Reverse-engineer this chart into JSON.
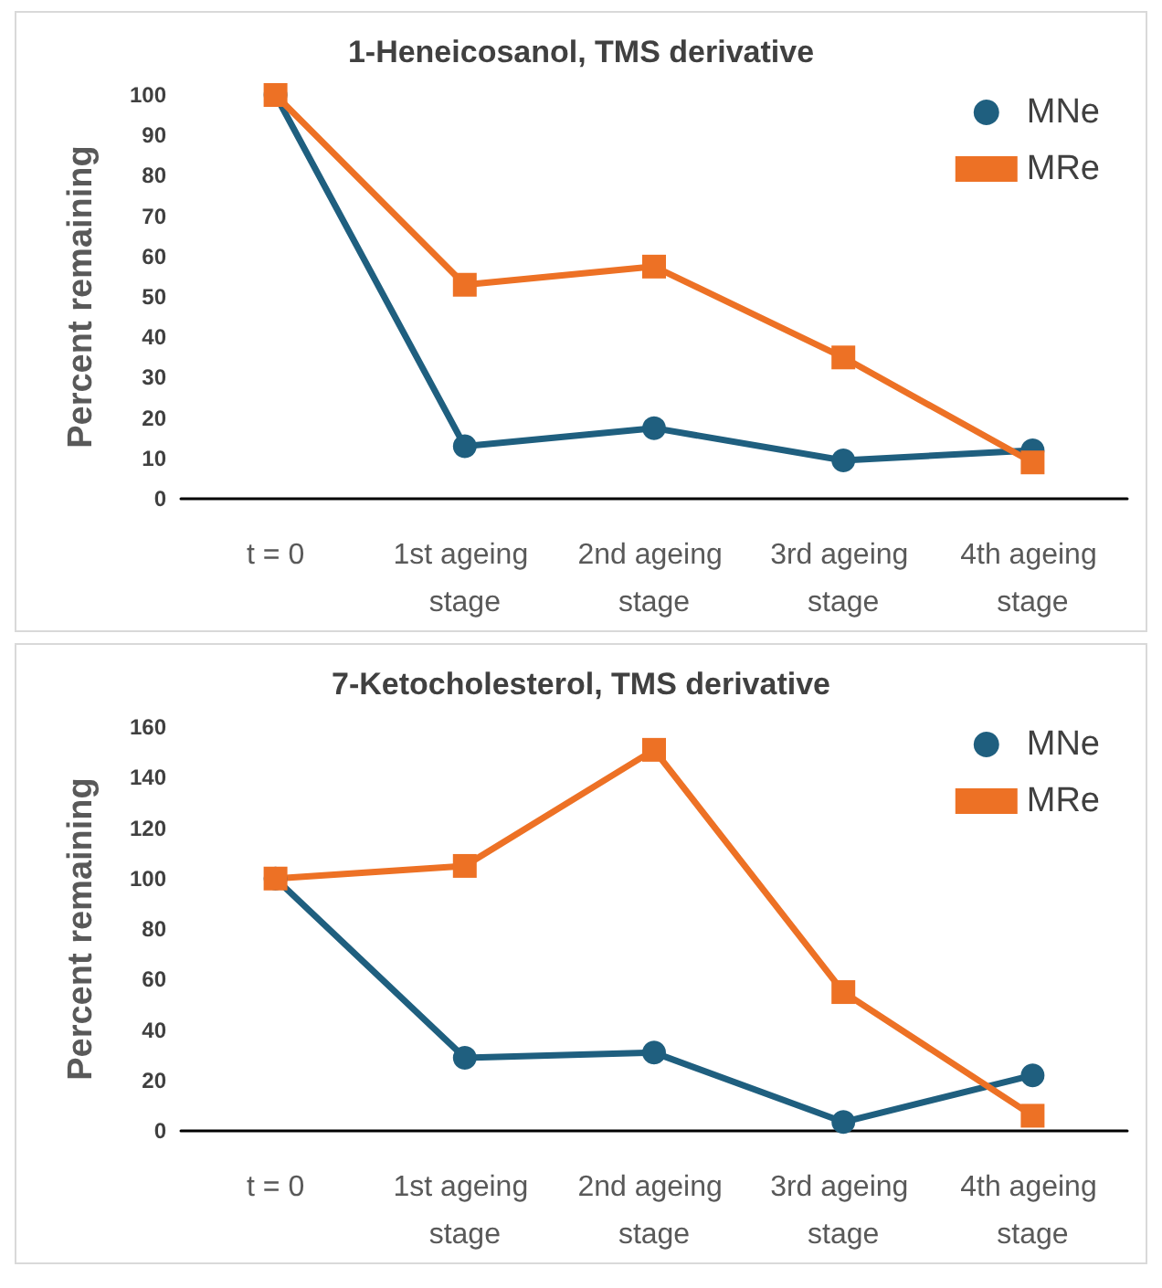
{
  "chart_data": [
    {
      "type": "line",
      "title": "1-Heneicosanol, TMS derivative",
      "ylabel": "Percent remaining",
      "categories": [
        "t = 0",
        "1st ageing stage",
        "2nd ageing stage",
        "3rd ageing stage",
        "4th ageing stage"
      ],
      "series": [
        {
          "name": "MNe",
          "color": "#1f5f7f",
          "marker": "circle",
          "values": [
            100,
            13,
            17.5,
            9.5,
            12
          ]
        },
        {
          "name": "MRe",
          "color": "#ed7125",
          "marker": "square",
          "values": [
            100,
            53,
            57.5,
            35,
            9
          ]
        }
      ],
      "ylim": [
        0,
        100
      ],
      "yticks": [
        0,
        10,
        20,
        30,
        40,
        50,
        60,
        70,
        80,
        90,
        100
      ],
      "grid": false,
      "legend": "top right",
      "line_style": "solid"
    },
    {
      "type": "line",
      "title": "7-Ketocholesterol, TMS derivative",
      "ylabel": "Percent remaining",
      "categories": [
        "t = 0",
        "1st ageing stage",
        "2nd ageing stage",
        "3rd ageing stage",
        "4th ageing stage"
      ],
      "series": [
        {
          "name": "MNe",
          "color": "#1f5f7f",
          "marker": "circle",
          "values": [
            100,
            29,
            31,
            3.5,
            22
          ]
        },
        {
          "name": "MRe",
          "color": "#ed7125",
          "marker": "square",
          "values": [
            100,
            105,
            151,
            55,
            6
          ]
        }
      ],
      "ylim": [
        0,
        160
      ],
      "yticks": [
        0,
        20,
        40,
        60,
        80,
        100,
        120,
        140,
        160
      ],
      "grid": false,
      "legend": "top right",
      "line_style": "solid"
    }
  ]
}
